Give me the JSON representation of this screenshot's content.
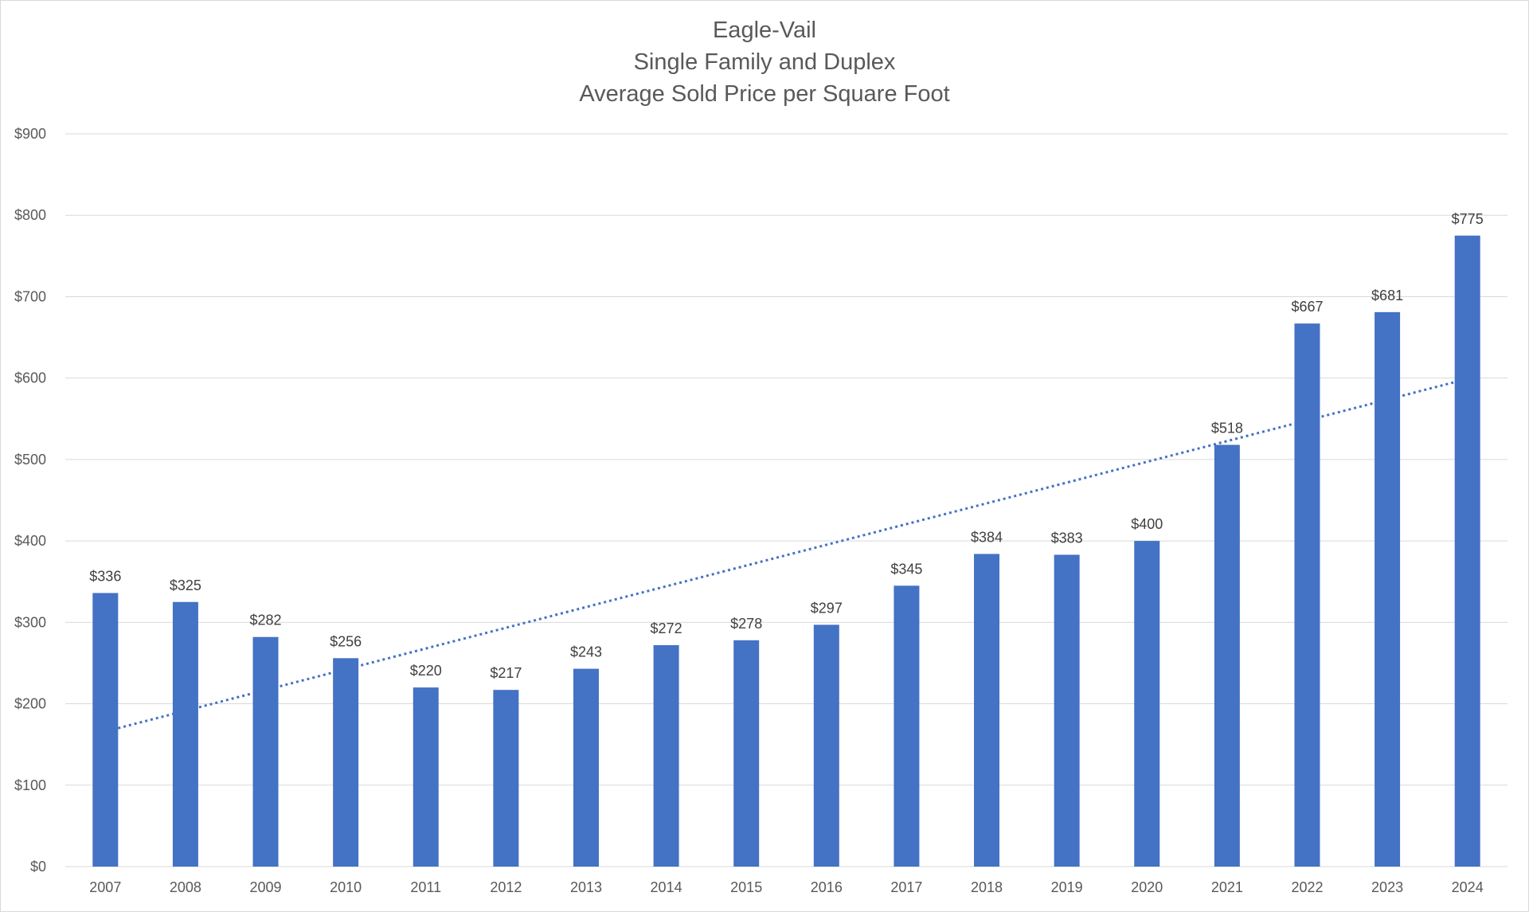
{
  "chart_data": {
    "type": "bar",
    "title_lines": [
      "Eagle-Vail",
      "Single Family and Duplex",
      "Average Sold Price per Square Foot"
    ],
    "categories": [
      "2007",
      "2008",
      "2009",
      "2010",
      "2011",
      "2012",
      "2013",
      "2014",
      "2015",
      "2016",
      "2017",
      "2018",
      "2019",
      "2020",
      "2021",
      "2022",
      "2023",
      "2024"
    ],
    "values": [
      336,
      325,
      282,
      256,
      220,
      217,
      243,
      272,
      278,
      297,
      345,
      384,
      383,
      400,
      518,
      667,
      681,
      775
    ],
    "data_labels": [
      "$336",
      "$325",
      "$282",
      "$256",
      "$220",
      "$217",
      "$243",
      "$272",
      "$278",
      "$297",
      "$345",
      "$384",
      "$383",
      "$400",
      "$518",
      "$667",
      "$681",
      "$775"
    ],
    "y_ticks": [
      0,
      100,
      200,
      300,
      400,
      500,
      600,
      700,
      800,
      900
    ],
    "y_tick_labels": [
      "$0",
      "$100",
      "$200",
      "$300",
      "$400",
      "$500",
      "$600",
      "$700",
      "$800",
      "$900"
    ],
    "ylim": [
      0,
      900
    ],
    "grid": true,
    "legend": "none",
    "trendline": {
      "type": "linear",
      "style": "dotted",
      "start_value": 170,
      "end_value": 595
    },
    "colors": {
      "bar": "#4472C4",
      "trendline": "#4472C4",
      "grid": "#d9d9d9",
      "text": "#595959"
    }
  }
}
